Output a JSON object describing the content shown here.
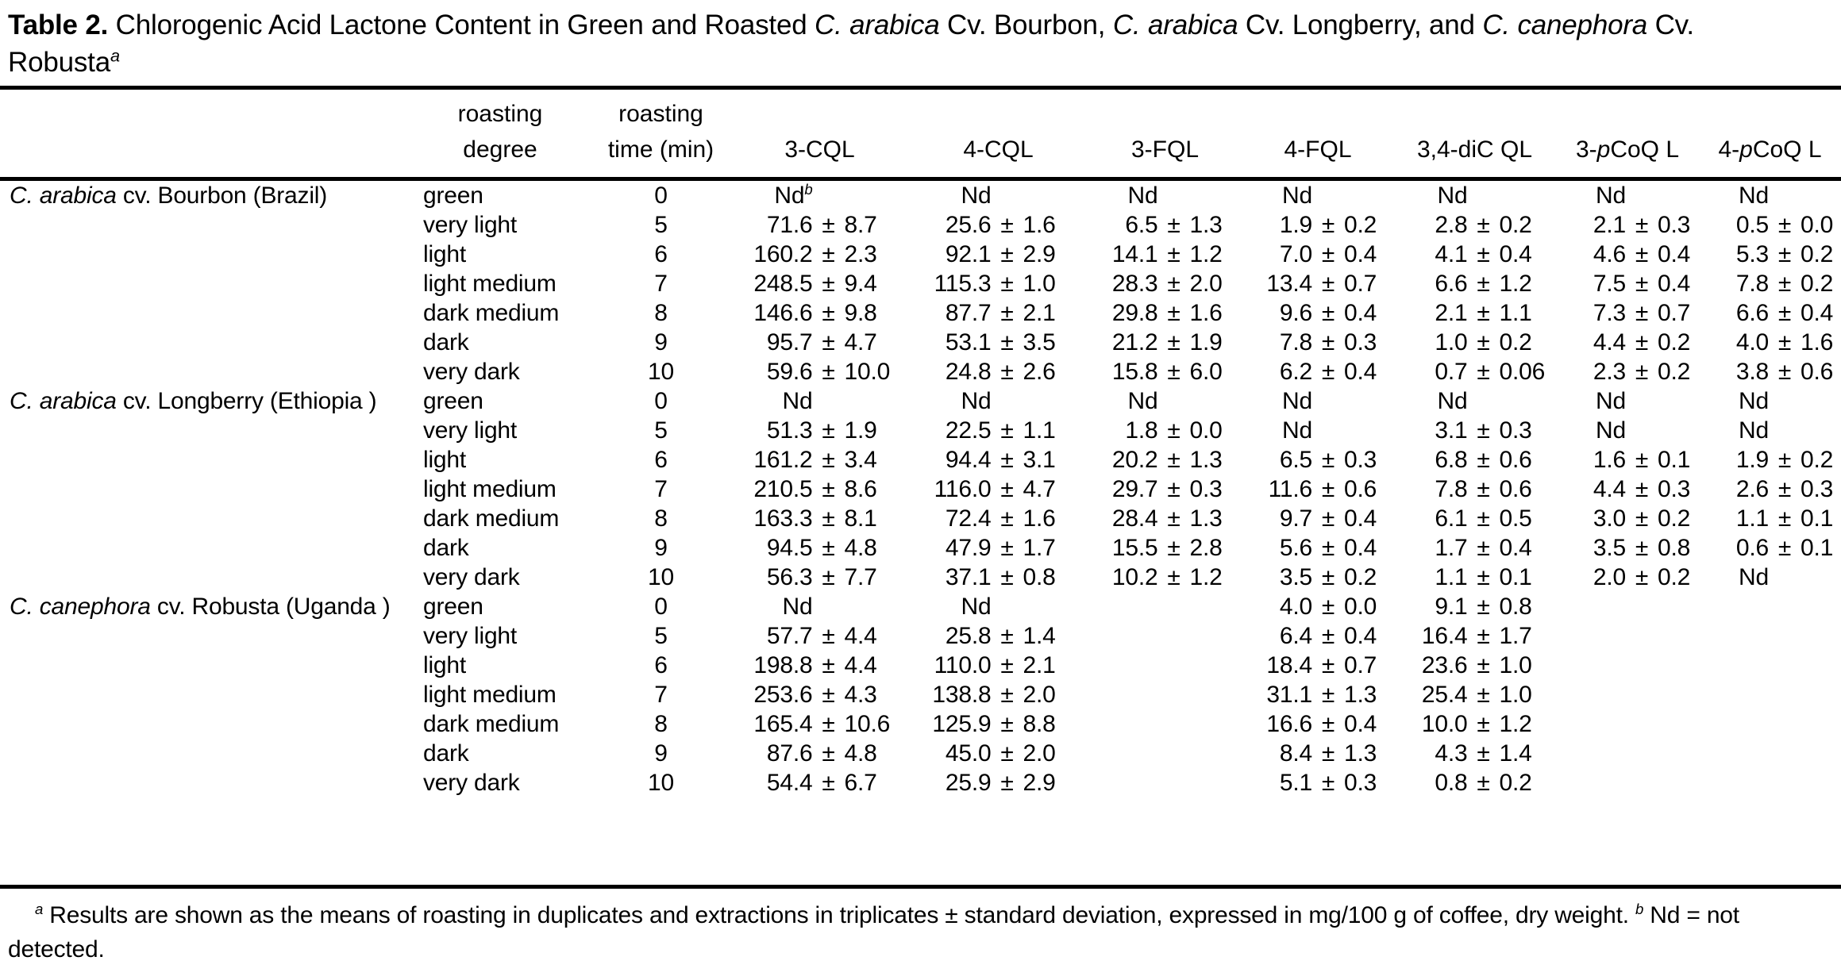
{
  "title": {
    "parts": [
      {
        "t": "Table 2.",
        "b": true
      },
      {
        "t": "  Chlorogenic Acid Lactone Content in Green and Roasted "
      },
      {
        "t": "C. arabica",
        "i": true
      },
      {
        "t": " Cv. Bourbon, "
      },
      {
        "t": "C. arabica",
        "i": true
      },
      {
        "t": " Cv. Longberry, and "
      },
      {
        "t": "C. canephora",
        "i": true
      },
      {
        "t": " Cv."
      },
      {
        "br": true
      },
      {
        "t": "Robusta"
      },
      {
        "t": "a",
        "sup": true,
        "i": true
      }
    ]
  },
  "table": {
    "columns": [
      {
        "lines": []
      },
      {
        "lines": [
          [
            {
              "t": "roasting"
            }
          ],
          [
            {
              "t": "degree"
            }
          ]
        ]
      },
      {
        "lines": [
          [
            {
              "t": "roasting"
            }
          ],
          [
            {
              "t": "time (min)"
            }
          ]
        ]
      },
      {
        "lines": [
          [
            {
              "t": "3-CQL"
            }
          ]
        ]
      },
      {
        "lines": [
          [
            {
              "t": "4-CQL"
            }
          ]
        ]
      },
      {
        "lines": [
          [
            {
              "t": "3-FQL"
            }
          ]
        ]
      },
      {
        "lines": [
          [
            {
              "t": "4-FQL"
            }
          ]
        ]
      },
      {
        "lines": [
          [
            {
              "t": "3,4-diC QL"
            }
          ]
        ]
      },
      {
        "lines": [
          [
            {
              "t": "3-"
            },
            {
              "t": "p",
              "i": true
            },
            {
              "t": "CoQ L"
            }
          ]
        ]
      },
      {
        "lines": [
          [
            {
              "t": "4-"
            },
            {
              "t": "p",
              "i": true
            },
            {
              "t": "CoQ L"
            }
          ]
        ]
      }
    ],
    "sections": [
      {
        "species_parts": [
          {
            "t": "C. arabica",
            "i": true
          },
          {
            "t": " cv. Bourbon (Brazil)"
          }
        ],
        "rows": [
          {
            "degree": "green",
            "time": "0",
            "values": [
              {
                "t": "Nd",
                "sup": "b"
              },
              "Nd",
              "Nd",
              "Nd",
              "Nd",
              "Nd",
              "Nd"
            ]
          },
          {
            "degree": "very light",
            "time": "5",
            "values": [
              "71.6 ± 8.7",
              "25.6 ± 1.6",
              "6.5 ± 1.3",
              "1.9 ± 0.2",
              "2.8 ± 0.2",
              "2.1 ± 0.3",
              "0.5 ± 0.0"
            ]
          },
          {
            "degree": "light",
            "time": "6",
            "values": [
              "160.2 ± 2.3",
              "92.1 ± 2.9",
              "14.1 ± 1.2",
              "7.0 ± 0.4",
              "4.1 ± 0.4",
              "4.6 ± 0.4",
              "5.3 ± 0.2"
            ]
          },
          {
            "degree": "light medium",
            "time": "7",
            "values": [
              "248.5 ± 9.4",
              "115.3 ± 1.0",
              "28.3 ± 2.0",
              "13.4 ± 0.7",
              "6.6 ± 1.2",
              "7.5 ± 0.4",
              "7.8 ± 0.2"
            ]
          },
          {
            "degree": "dark medium",
            "time": "8",
            "values": [
              "146.6 ± 9.8",
              "87.7 ± 2.1",
              "29.8 ± 1.6",
              "9.6 ± 0.4",
              "2.1 ± 1.1",
              "7.3 ± 0.7",
              "6.6 ± 0.4"
            ]
          },
          {
            "degree": "dark",
            "time": "9",
            "values": [
              "95.7 ± 4.7",
              "53.1 ± 3.5",
              "21.2 ± 1.9",
              "7.8 ± 0.3",
              "1.0 ± 0.2",
              "4.4 ± 0.2",
              "4.0 ± 1.6"
            ]
          },
          {
            "degree": "very dark",
            "time": "10",
            "values": [
              "59.6 ± 10.0",
              "24.8 ± 2.6",
              "15.8 ± 6.0",
              "6.2 ± 0.4",
              "0.7 ± 0.06",
              "2.3 ± 0.2",
              "3.8 ± 0.6"
            ]
          }
        ]
      },
      {
        "species_parts": [
          {
            "t": "C. arabica",
            "i": true
          },
          {
            "t": " cv. Longberry (Ethiopia )"
          }
        ],
        "rows": [
          {
            "degree": "green",
            "time": "0",
            "values": [
              "Nd",
              "Nd",
              "Nd",
              "Nd",
              "Nd",
              "Nd",
              "Nd"
            ]
          },
          {
            "degree": "very light",
            "time": "5",
            "values": [
              "51.3 ± 1.9",
              "22.5 ± 1.1",
              "1.8 ± 0.0",
              "Nd",
              "3.1 ± 0.3",
              "Nd",
              "Nd"
            ]
          },
          {
            "degree": "light",
            "time": "6",
            "values": [
              "161.2 ± 3.4",
              "94.4 ± 3.1",
              "20.2 ± 1.3",
              "6.5 ± 0.3",
              "6.8 ± 0.6",
              "1.6 ± 0.1",
              "1.9 ± 0.2"
            ]
          },
          {
            "degree": "light medium",
            "time": "7",
            "values": [
              "210.5 ± 8.6",
              "116.0 ± 4.7",
              "29.7 ± 0.3",
              "11.6 ± 0.6",
              "7.8 ± 0.6",
              "4.4 ± 0.3",
              "2.6 ± 0.3"
            ]
          },
          {
            "degree": "dark medium",
            "time": "8",
            "values": [
              "163.3 ± 8.1",
              "72.4 ± 1.6",
              "28.4 ± 1.3",
              "9.7 ±0.4",
              "6.1 ±0.5",
              "3.0 ± 0.2",
              "1.1 ± 0.1"
            ]
          },
          {
            "degree": "dark",
            "time": "9",
            "values": [
              "94.5 ± 4.8",
              "47.9 ± 1.7",
              "15.5 ±2.8",
              "5.6 ± 0.4",
              "1.7 ± 0.4",
              "3.5 ± 0.8",
              "0.6 ± 0.1"
            ]
          },
          {
            "degree": "very dark",
            "time": "10",
            "values": [
              "56.3 ± 7.7",
              "37.1 ± 0.8",
              "10.2 ± 1.2",
              "3.5 ± 0.2",
              "1.1 ± 0.1",
              "2.0 ± 0.2",
              "Nd"
            ]
          }
        ]
      },
      {
        "species_parts": [
          {
            "t": "C. canephora",
            "i": true
          },
          {
            "t": " cv. Robusta (Uganda )"
          }
        ],
        "rows": [
          {
            "degree": "green",
            "time": "0",
            "values": [
              "Nd",
              "Nd",
              "",
              "4.0 ± 0.0",
              "9.1 ±0.8",
              "",
              ""
            ]
          },
          {
            "degree": "very light",
            "time": "5",
            "values": [
              "57.7 ± 4.4",
              "25.8 ± 1.4",
              "",
              "6.4 ± 0.4",
              "16.4 ± 1.7",
              "",
              ""
            ]
          },
          {
            "degree": "light",
            "time": "6",
            "values": [
              "198.8 ± 4.4",
              "110.0 ± 2.1",
              "",
              "18.4 ± 0.7",
              "23.6 ± 1.0",
              "",
              ""
            ]
          },
          {
            "degree": "light medium",
            "time": "7",
            "values": [
              "253.6 ± 4.3",
              "138.8 ± 2.0",
              "",
              "31.1 ± 1.3",
              "25.4 ± 1.0",
              "",
              ""
            ]
          },
          {
            "degree": "dark medium",
            "time": "8",
            "values": [
              "165.4 ± 10.6",
              "125.9 ± 8.8",
              "",
              "16.6 ± 0.4",
              "10.0 ± 1.2",
              "",
              ""
            ]
          },
          {
            "degree": "dark",
            "time": "9",
            "values": [
              "87.6 ± 4.8",
              "45.0 ± 2.0",
              "",
              "8.4 ± 1.3",
              "4.3 ± 1.4",
              "",
              ""
            ]
          },
          {
            "degree": "very dark",
            "time": "10",
            "values": [
              "54.4 ± 6.7",
              "25.9 ± 2.9",
              "",
              "5.1 ± 0.3",
              "0.8 ± 0.2",
              "",
              ""
            ]
          }
        ]
      }
    ]
  },
  "footnote": {
    "parts": [
      {
        "t": "a",
        "sup": true,
        "i": true
      },
      {
        "t": " Results are shown as the means of roasting in duplicates and extractions in triplicates ± standard deviation, expressed in mg/100 g of coffee, dry weight. "
      },
      {
        "t": "b",
        "sup": true,
        "i": true
      },
      {
        "t": " Nd = not"
      },
      {
        "br": true
      },
      {
        "t": "detected."
      }
    ]
  }
}
